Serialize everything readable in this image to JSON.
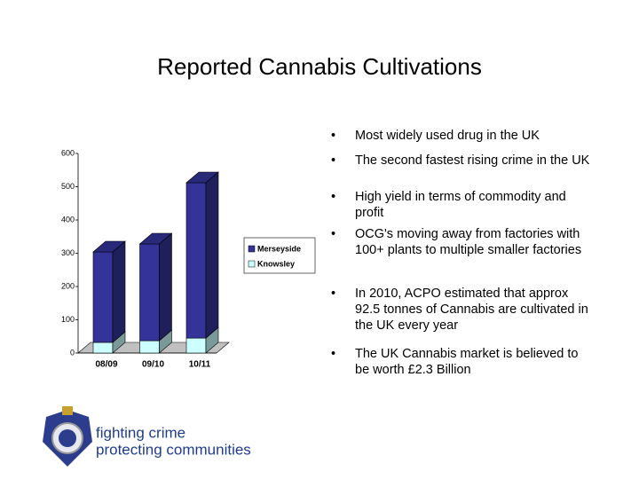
{
  "header": {
    "title": "Reported Cannabis Cultivations"
  },
  "chart_data": {
    "type": "bar3d-stacked",
    "categories": [
      "08/09",
      "09/10",
      "10/11"
    ],
    "series": [
      {
        "name": "Knowsley",
        "color": "#ccffff",
        "values": [
          32,
          37,
          45
        ]
      },
      {
        "name": "Merseyside",
        "color": "#333399",
        "values": [
          272,
          291,
          467
        ]
      }
    ],
    "ylim": [
      0,
      600
    ],
    "yticks": [
      0,
      100,
      200,
      300,
      400,
      500,
      600
    ],
    "grid": false
  },
  "bullets": [
    "Most widely used drug in the UK",
    "The second fastest rising crime in the UK",
    "High yield in terms of commodity and profit",
    "OCG's moving away from factories with 100+ plants to multiple smaller factories",
    "In 2010, ACPO estimated that approx 92.5 tonnes of Cannabis are cultivated in the UK every year",
    "The UK Cannabis market is believed to be worth £2.3 Billion"
  ],
  "logo": {
    "line1": "fighting crime",
    "line2": "protecting communities"
  }
}
